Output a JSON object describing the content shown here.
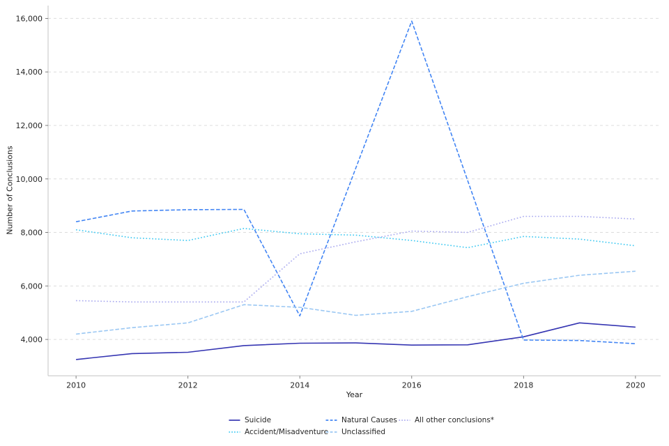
{
  "chart_data": {
    "type": "line",
    "title": "",
    "xlabel": "Year",
    "ylabel": "Number of Conclusions",
    "x": [
      2010,
      2011,
      2012,
      2013,
      2014,
      2015,
      2016,
      2017,
      2018,
      2019,
      2020
    ],
    "series": [
      {
        "name": "Suicide",
        "color": "#3535b2",
        "style": "solid",
        "values": [
          3250,
          3470,
          3520,
          3770,
          3860,
          3870,
          3790,
          3800,
          4100,
          4620,
          4460
        ]
      },
      {
        "name": "Accident/Misadventure",
        "color": "#3ec9f2",
        "style": "dotted",
        "values": [
          8100,
          7800,
          7700,
          8150,
          7950,
          7900,
          7700,
          7430,
          7850,
          7750,
          7500
        ]
      },
      {
        "name": "Natural Causes",
        "color": "#4285f4",
        "style": "dashed",
        "values": [
          8400,
          8800,
          8850,
          8860,
          4880,
          10400,
          15900,
          9940,
          3980,
          3960,
          3840
        ]
      },
      {
        "name": "Unclassified",
        "color": "#9ac7f3",
        "style": "dashed",
        "values": [
          4200,
          4440,
          4620,
          5300,
          5200,
          4900,
          5050,
          5600,
          6100,
          6400,
          6550
        ]
      },
      {
        "name": "All other conclusions*",
        "color": "#a9a9ef",
        "style": "dotted",
        "values": [
          5450,
          5400,
          5400,
          5400,
          7200,
          7650,
          8050,
          8000,
          8600,
          8600,
          8500
        ]
      }
    ],
    "xlim": [
      2009.5,
      2020.45
    ],
    "ylim": [
      2640,
      16480
    ],
    "grid": "horizontal-dashed",
    "legend_position": "bottom-center",
    "legend_columns": 3
  },
  "axes": {
    "x_ticks": [
      "2010",
      "2012",
      "2014",
      "2016",
      "2018",
      "2020"
    ],
    "x_tick_values": [
      2010,
      2012,
      2014,
      2016,
      2018,
      2020
    ],
    "y_ticks": [
      "4,000",
      "6,000",
      "8,000",
      "10,000",
      "12,000",
      "14,000",
      "16,000"
    ],
    "y_tick_values": [
      4000,
      6000,
      8000,
      10000,
      12000,
      14000,
      16000
    ]
  }
}
